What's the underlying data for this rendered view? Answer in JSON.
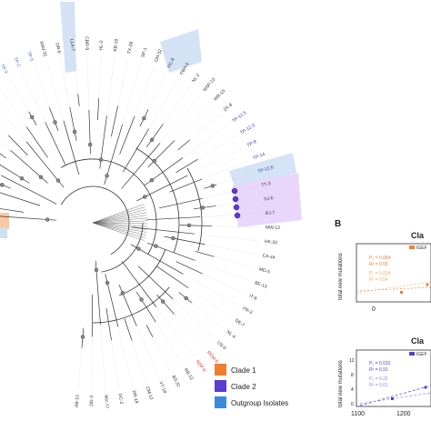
{
  "panel_b_letter": "B",
  "legend": {
    "items": [
      {
        "label": "Clade 1",
        "color": "#f07f2f"
      },
      {
        "label": "Clade 2",
        "color": "#5a3ccf"
      },
      {
        "label": "Outgroup Isolates",
        "color": "#3f8ad8"
      }
    ]
  },
  "tree": {
    "clade2_labels": [
      "TP-12.5",
      "TP-12.3",
      "TP-8",
      "TP-14",
      "TP-12.6"
    ],
    "outgroup_labels": [
      "TP-3",
      "TP-2",
      "TP-5"
    ],
    "tip_labels": [
      "ST-14",
      "ST-11",
      "ST-10",
      "RJ-4",
      "CM-6",
      "CM-7",
      "RJ-2",
      "WG-11",
      "NPH-22",
      "BDV-4",
      "GC-12",
      "SW-3",
      "MAV-31",
      "DR-6",
      "LLA-7",
      "CBR-9",
      "HL-2",
      "KB-19",
      "TX-28",
      "SP-1",
      "OH-32",
      "PC-9",
      "FBH-4",
      "NL-2",
      "NSP-13",
      "WR-15",
      "ZX-8",
      "TT-3",
      "SJ-5",
      "RJ-7",
      "MW-13",
      "HK-20",
      "CA-44",
      "MD-5",
      "BE-13",
      "IT-9",
      "FR-3",
      "DE-7",
      "NL-4",
      "US-5",
      "RB-12",
      "BS-31",
      "VT-18",
      "CM-12",
      "RR-18",
      "GC-2",
      "MX-77",
      "DD-3",
      "AB-10"
    ],
    "red_labels": [
      "RCM-5",
      "NSP-6"
    ]
  },
  "top_chart": {
    "title": "Cla",
    "ylabel": "total new mutations",
    "legend_tag": "IGEF",
    "color": "#f07f2f",
    "annotations": [
      "P₂ = 0.084",
      "R² = 0.55",
      "P₂ = 0.034",
      "R² = 0.54"
    ],
    "x_ticks": [
      "0"
    ],
    "y_ticks": []
  },
  "bottom_chart": {
    "title": "Cla",
    "ylabel": "total new mutations",
    "legend_tag": "IGEF",
    "color": "#5a3ccf",
    "annotations": [
      "P₂ = 0.032",
      "R² = 0.91",
      "P₂ = 0.25",
      "R² = 0.61"
    ],
    "x_ticks": [
      "1100",
      "1200"
    ],
    "y_ticks": [
      "12",
      "8",
      "4",
      "0"
    ]
  }
}
